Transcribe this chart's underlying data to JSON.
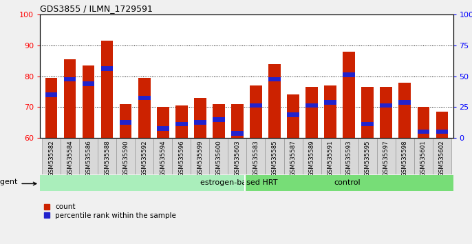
{
  "title": "GDS3855 / ILMN_1729591",
  "categories": [
    "GSM535582",
    "GSM535584",
    "GSM535586",
    "GSM535588",
    "GSM535590",
    "GSM535592",
    "GSM535594",
    "GSM535596",
    "GSM535599",
    "GSM535600",
    "GSM535603",
    "GSM535583",
    "GSM535585",
    "GSM535587",
    "GSM535589",
    "GSM535591",
    "GSM535593",
    "GSM535595",
    "GSM535597",
    "GSM535598",
    "GSM535601",
    "GSM535602"
  ],
  "red_values": [
    79.5,
    85.5,
    83.5,
    91.5,
    71.0,
    79.5,
    70.0,
    70.5,
    73.0,
    71.0,
    71.0,
    77.0,
    84.0,
    74.0,
    76.5,
    77.0,
    88.0,
    76.5,
    76.5,
    78.0,
    70.0,
    68.5
  ],
  "blue_values": [
    74.0,
    79.0,
    77.5,
    82.5,
    65.0,
    73.0,
    63.0,
    64.5,
    65.0,
    66.0,
    61.5,
    70.5,
    79.0,
    67.5,
    70.5,
    71.5,
    80.5,
    64.5,
    70.5,
    71.5,
    62.0,
    62.0
  ],
  "group1_label": "estrogen-based HRT",
  "group1_count": 11,
  "group2_label": "control",
  "group2_count": 11,
  "agent_label": "agent",
  "ymin": 60,
  "ymax": 100,
  "yticks_left": [
    60,
    70,
    80,
    90,
    100
  ],
  "bar_color": "#cc2200",
  "blue_color": "#2222cc",
  "bg_color": "#f0f0f0",
  "plot_bg": "#ffffff",
  "group_bg": "#77dd77",
  "bar_width": 0.65,
  "legend_count_label": "count",
  "legend_pct_label": "percentile rank within the sample"
}
